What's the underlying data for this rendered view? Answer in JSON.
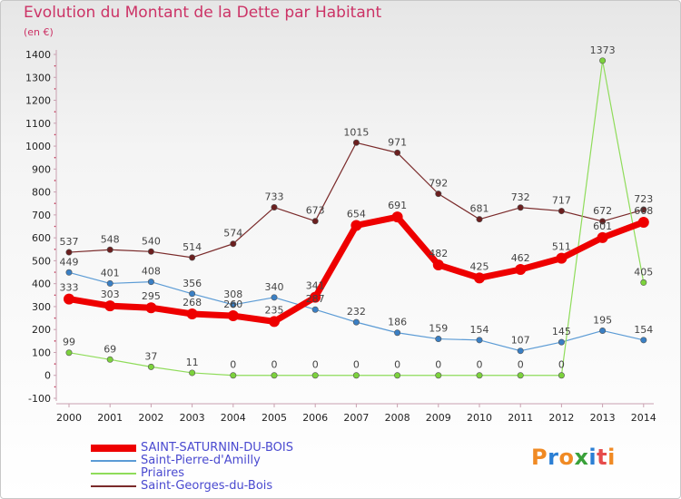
{
  "header": {
    "title": "Evolution du Montant de la Dette par Habitant",
    "unit": "(en €)"
  },
  "logo": {
    "text": "Proxiti",
    "colors": [
      "#f08a24",
      "#2b7fd4",
      "#f08a24",
      "#3aa13a",
      "#2b7fd4",
      "#e64c4c",
      "#f08a24"
    ]
  },
  "chart_data": {
    "type": "line",
    "title": "Evolution du Montant de la Dette par Habitant",
    "ylabel": "(en €)",
    "xlabel": "",
    "x": [
      "2000",
      "2001",
      "2002",
      "2003",
      "2004",
      "2005",
      "2006",
      "2007",
      "2008",
      "2009",
      "2010",
      "2011",
      "2012",
      "2013",
      "2014"
    ],
    "ylim": [
      -100,
      1400
    ],
    "yticks": [
      -100,
      0,
      100,
      200,
      300,
      400,
      500,
      600,
      700,
      800,
      900,
      1000,
      1100,
      1200,
      1300,
      1400
    ],
    "grid": false,
    "legend_position": "bottom-left",
    "series": [
      {
        "name": "Saint-Georges-du-Bois",
        "color": "#7a2a2a",
        "dot": "#6b1f1f",
        "width": 1.2,
        "values": [
          537,
          548,
          540,
          514,
          574,
          733,
          673,
          1015,
          971,
          792,
          681,
          732,
          717,
          672,
          723
        ],
        "labels": [
          "537",
          "548",
          "540",
          "514",
          "574",
          "733",
          "673",
          "1015",
          "971",
          "792",
          "681",
          "732",
          "717",
          "672",
          "723"
        ]
      },
      {
        "name": "Saint-Pierre-d'Amilly",
        "color": "#5b9bd5",
        "dot": "#3a7fc4",
        "width": 1.2,
        "values": [
          449,
          401,
          408,
          356,
          308,
          340,
          287,
          232,
          186,
          159,
          154,
          107,
          145,
          195,
          154
        ],
        "labels": [
          "449",
          "401",
          "408",
          "356",
          "308",
          "340",
          "287",
          "232",
          "186",
          "159",
          "154",
          "107",
          "145",
          "195",
          "154"
        ]
      },
      {
        "name": "Priaires",
        "color": "#8fdc5a",
        "dot": "#7cd23c",
        "width": 1.2,
        "values": [
          99,
          69,
          37,
          11,
          0,
          0,
          0,
          0,
          0,
          0,
          0,
          0,
          0,
          1373,
          405
        ],
        "labels": [
          "99",
          "69",
          "37",
          "11",
          "0",
          "0",
          "0",
          "0",
          "0",
          "0",
          "0",
          "0",
          "0",
          "1373",
          "405"
        ]
      },
      {
        "name": "SAINT-SATURNIN-DU-BOIS",
        "color": "#ee0000",
        "dot": "#ee0000",
        "width": 7,
        "values": [
          333,
          303,
          295,
          268,
          260,
          235,
          341,
          654,
          691,
          482,
          425,
          462,
          511,
          601,
          668
        ],
        "labels": [
          "333",
          "303",
          "295",
          "268",
          "260",
          "235",
          "341",
          "654",
          "691",
          "482",
          "425",
          "462",
          "511",
          "601",
          "668"
        ]
      }
    ]
  },
  "legend": [
    {
      "label": "SAINT-SATURNIN-DU-BOIS",
      "color": "#ee0000",
      "thickness": 8
    },
    {
      "label": "Saint-Pierre-d'Amilly",
      "color": "#5b9bd5",
      "thickness": 2
    },
    {
      "label": "Priaires",
      "color": "#8fdc5a",
      "thickness": 2
    },
    {
      "label": "Saint-Georges-du-Bois",
      "color": "#7a2a2a",
      "thickness": 2
    }
  ]
}
